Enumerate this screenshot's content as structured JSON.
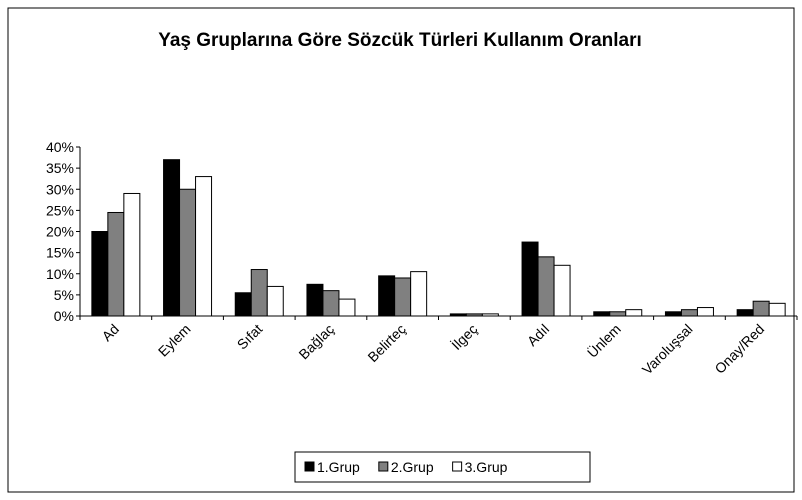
{
  "chart_data": {
    "type": "bar",
    "title": "Yaş Gruplarına Göre Sözcük Türleri Kullanım Oranları",
    "categories": [
      "Ad",
      "Eylem",
      "Sıfat",
      "Bağlaç",
      "Belirteç",
      "İlgeç",
      "Adıl",
      "Ünlem",
      "Varoluşsal",
      "Onay/Red"
    ],
    "series": [
      {
        "name": "1.Grup",
        "color": "#000000",
        "values": [
          20,
          37,
          5.5,
          7.5,
          9.5,
          0.5,
          17.5,
          1,
          1,
          1.5
        ]
      },
      {
        "name": "2.Grup",
        "color": "#808080",
        "values": [
          24.5,
          30,
          11,
          6,
          9,
          0.5,
          14,
          1,
          1.5,
          3.5
        ]
      },
      {
        "name": "3.Grup",
        "color": "#ffffff",
        "values": [
          29,
          33,
          7,
          4,
          10.5,
          0.5,
          12,
          1.5,
          2,
          3
        ]
      }
    ],
    "ylim": [
      0,
      40
    ],
    "yticks": [
      {
        "value": 0,
        "label": "0%"
      },
      {
        "value": 5,
        "label": "5%"
      },
      {
        "value": 10,
        "label": "10%"
      },
      {
        "value": 15,
        "label": "15%"
      },
      {
        "value": 20,
        "label": "20%"
      },
      {
        "value": 25,
        "label": "25%"
      },
      {
        "value": 30,
        "label": "30%"
      },
      {
        "value": 35,
        "label": "35%"
      },
      {
        "value": 40,
        "label": "40%"
      }
    ],
    "grid": false,
    "legend": "bottom"
  }
}
